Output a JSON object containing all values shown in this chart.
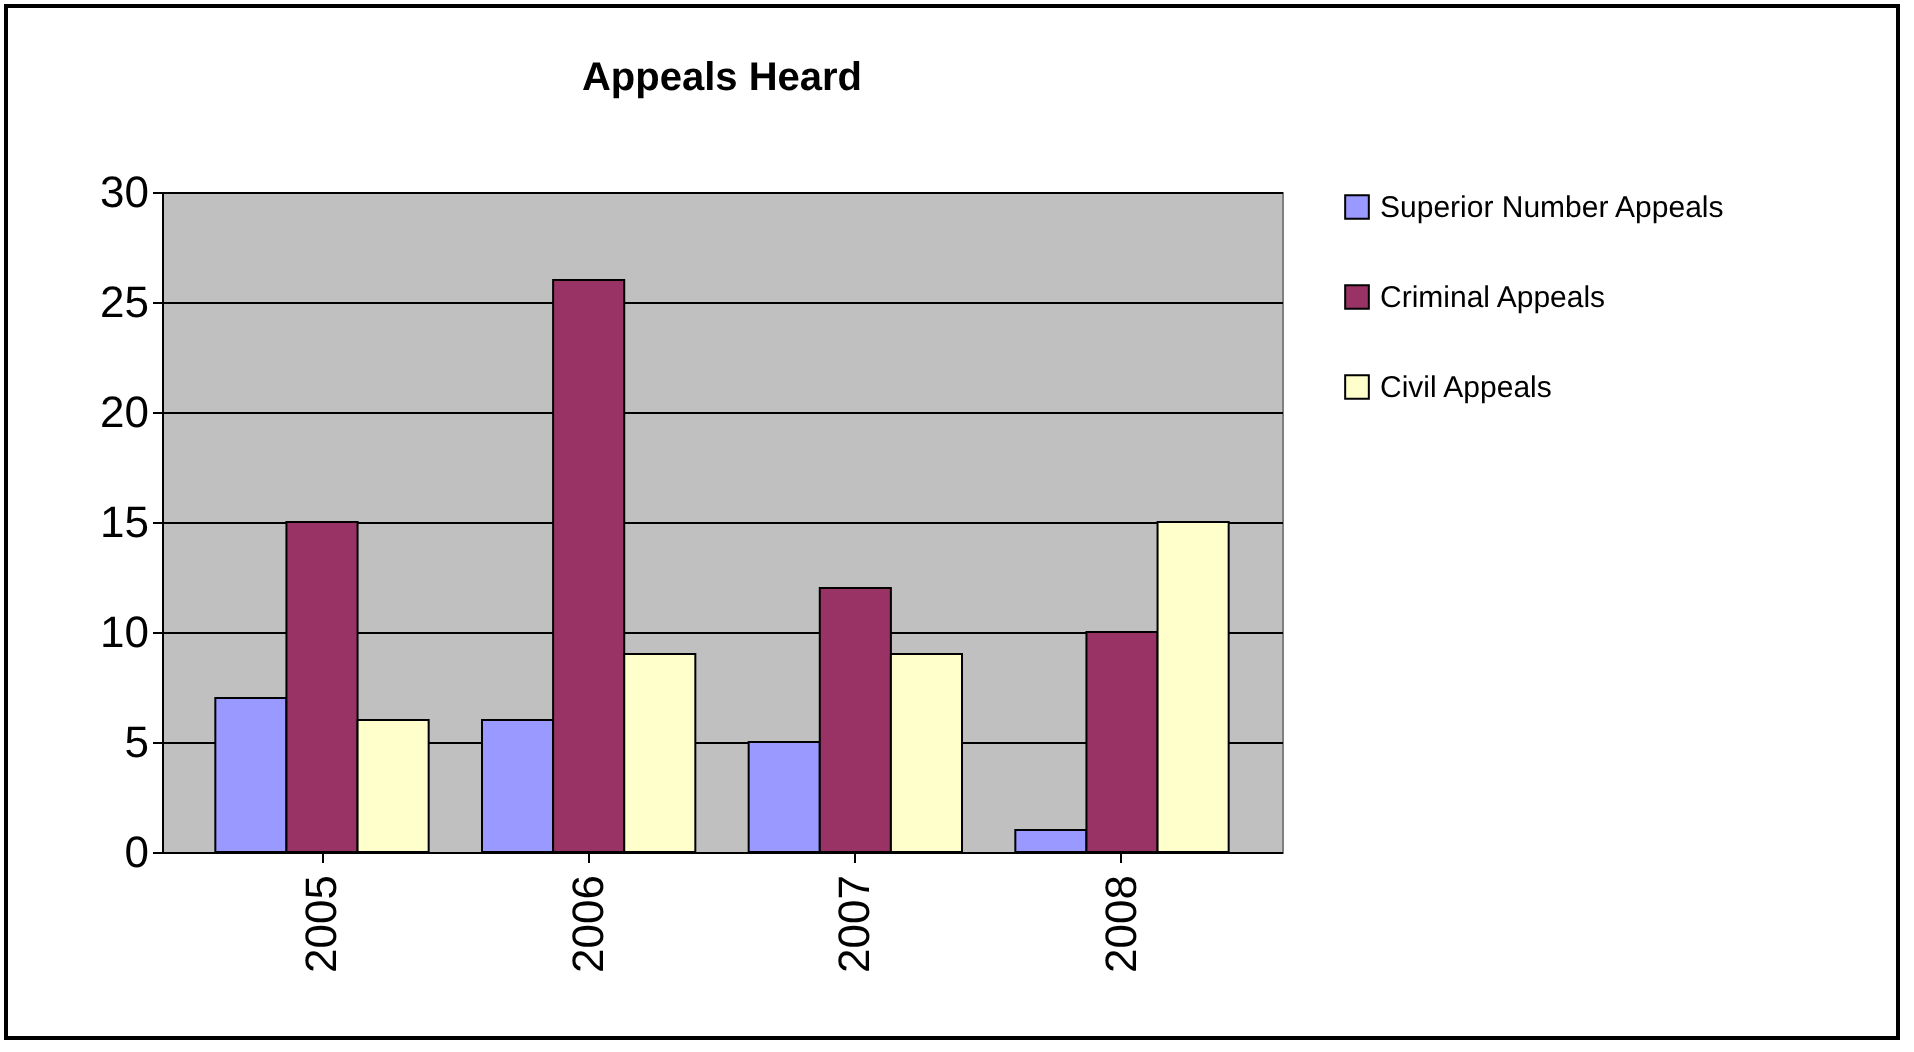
{
  "chart_data": {
    "type": "bar",
    "title": "Appeals Heard",
    "categories": [
      "2005",
      "2006",
      "2007",
      "2008"
    ],
    "series": [
      {
        "name": "Superior Number Appeals",
        "color": "#9999ff",
        "values": [
          7,
          6,
          5,
          1
        ]
      },
      {
        "name": "Criminal Appeals",
        "color": "#993366",
        "values": [
          15,
          26,
          12,
          10
        ]
      },
      {
        "name": "Civil Appeals",
        "color": "#ffffcc",
        "values": [
          6,
          9,
          9,
          15
        ]
      }
    ],
    "ylim": [
      0,
      30
    ],
    "yticks": [
      0,
      5,
      10,
      15,
      20,
      25,
      30
    ],
    "grid": "y",
    "legend": "right"
  }
}
